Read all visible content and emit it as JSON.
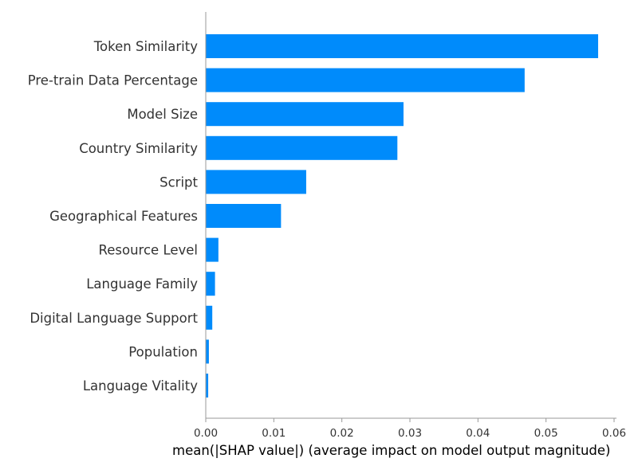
{
  "chart_data": {
    "type": "bar",
    "orientation": "horizontal",
    "categories": [
      "Token Similarity",
      "Pre-train Data Percentage",
      "Model Size",
      "Country Similarity",
      "Script",
      "Geographical Features",
      "Resource Level",
      "Language Family",
      "Digital Language Support",
      "Population",
      "Language Vitality"
    ],
    "values": [
      0.0576,
      0.0468,
      0.029,
      0.0281,
      0.0147,
      0.011,
      0.0018,
      0.0013,
      0.0009,
      0.0004,
      0.0003
    ],
    "xlabel": "mean(|SHAP value|) (average impact on model output magnitude)",
    "ylabel": "",
    "title": "",
    "xlim": [
      0,
      0.06
    ],
    "xticks": [
      "0.00",
      "0.01",
      "0.02",
      "0.03",
      "0.04",
      "0.05",
      "0.06"
    ],
    "bar_color": "#008bfb",
    "grid": false
  }
}
